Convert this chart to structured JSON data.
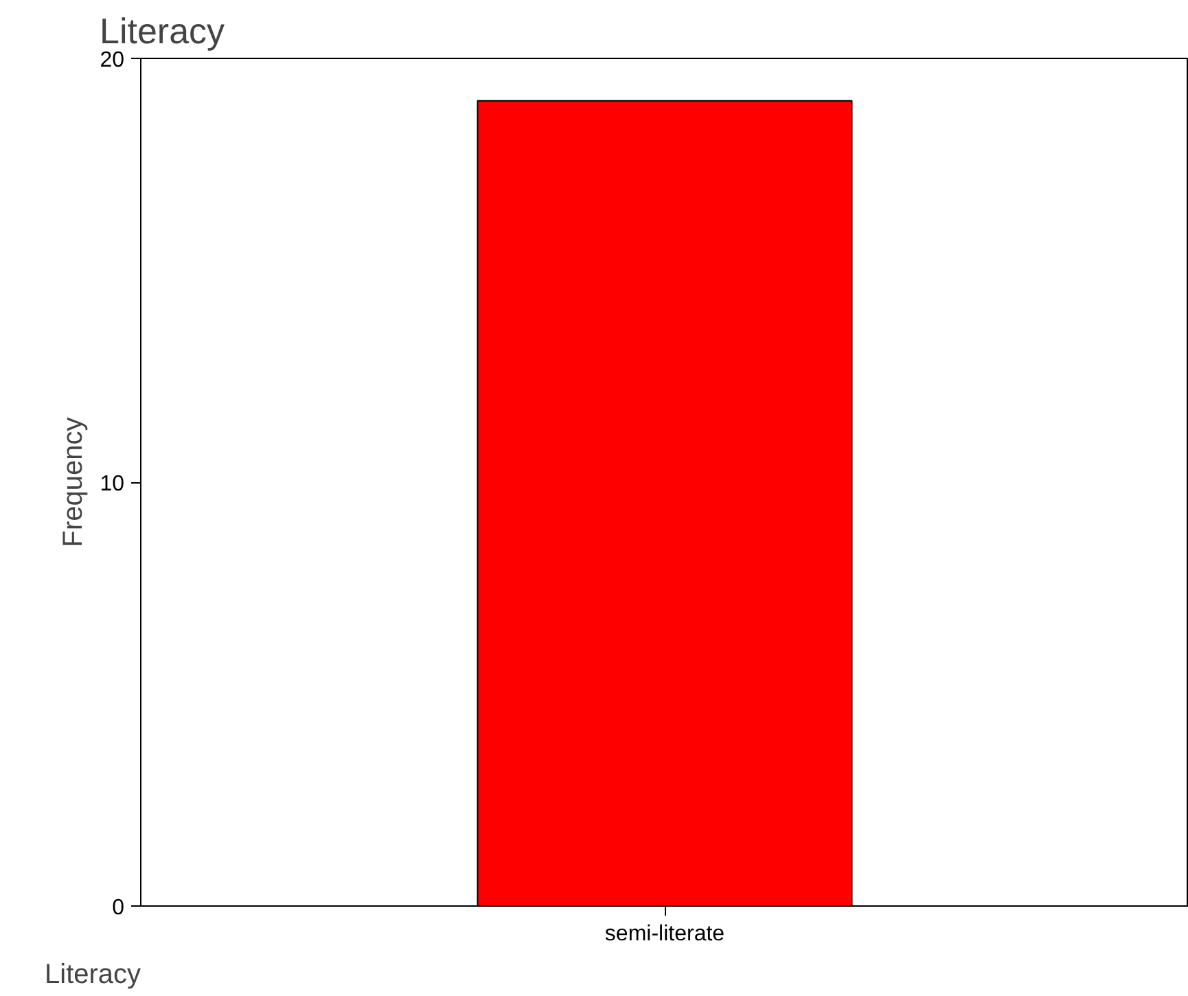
{
  "chart_data": {
    "type": "bar",
    "title": "Literacy",
    "xlabel": "Literacy",
    "ylabel": "Frequency",
    "categories": [
      "semi-literate"
    ],
    "values": [
      19
    ],
    "color": "#ff0000",
    "ylim": [
      0,
      20
    ],
    "yticks": [
      0,
      10,
      20
    ],
    "grid": false
  }
}
